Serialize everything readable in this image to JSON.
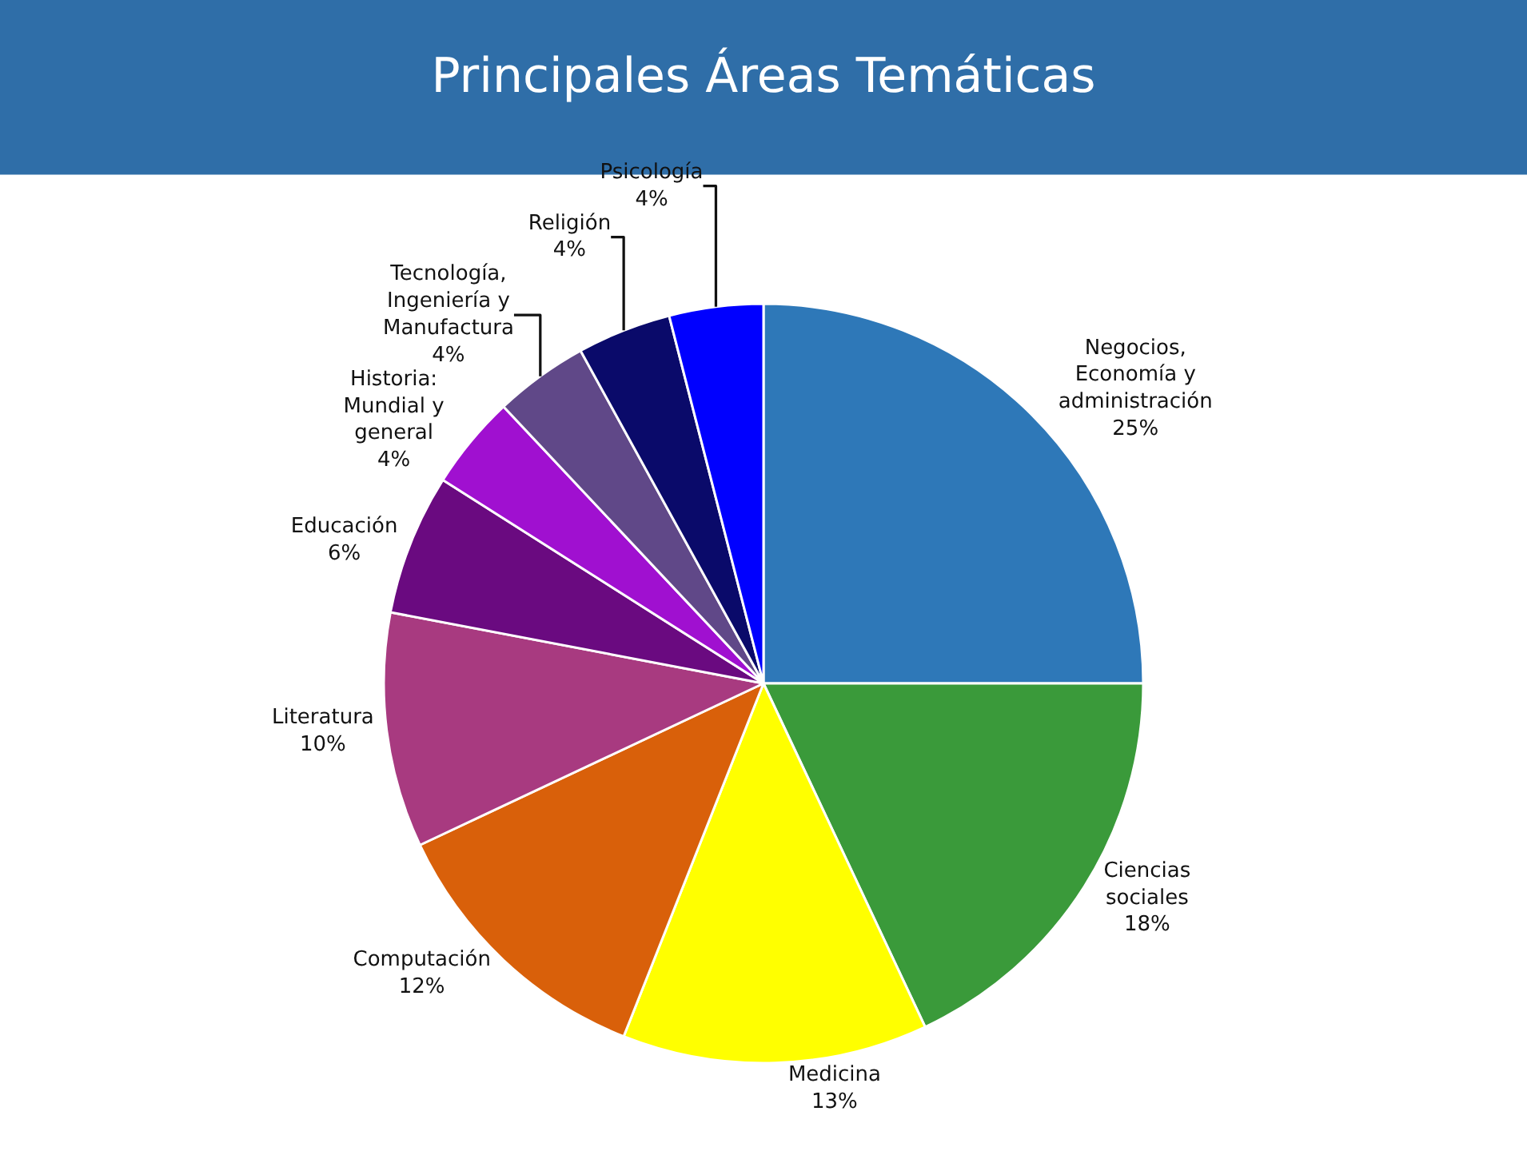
{
  "chart_data": {
    "type": "pie",
    "title": "Principales Áreas Temáticas",
    "categories": [
      "Negocios, Economía y administración",
      "Ciencias sociales",
      "Medicina",
      "Computación",
      "Literatura",
      "Educación",
      "Historia: Mundial y general",
      "Tecnología, Ingeniería y Manufactura",
      "Religión",
      "Psicología"
    ],
    "values": [
      25,
      18,
      13,
      12,
      10,
      6,
      4,
      4,
      4,
      4
    ],
    "value_labels": [
      "25%",
      "18%",
      "13%",
      "12%",
      "10%",
      "6%",
      "4%",
      "4%",
      "4%",
      "4%"
    ],
    "colors": [
      "#2e78b8",
      "#3a9a3a",
      "#ffff00",
      "#d9600a",
      "#a83a80",
      "#6a0a80",
      "#a010d0",
      "#604888",
      "#0a0a6a",
      "#0000ff"
    ],
    "legend": false
  }
}
